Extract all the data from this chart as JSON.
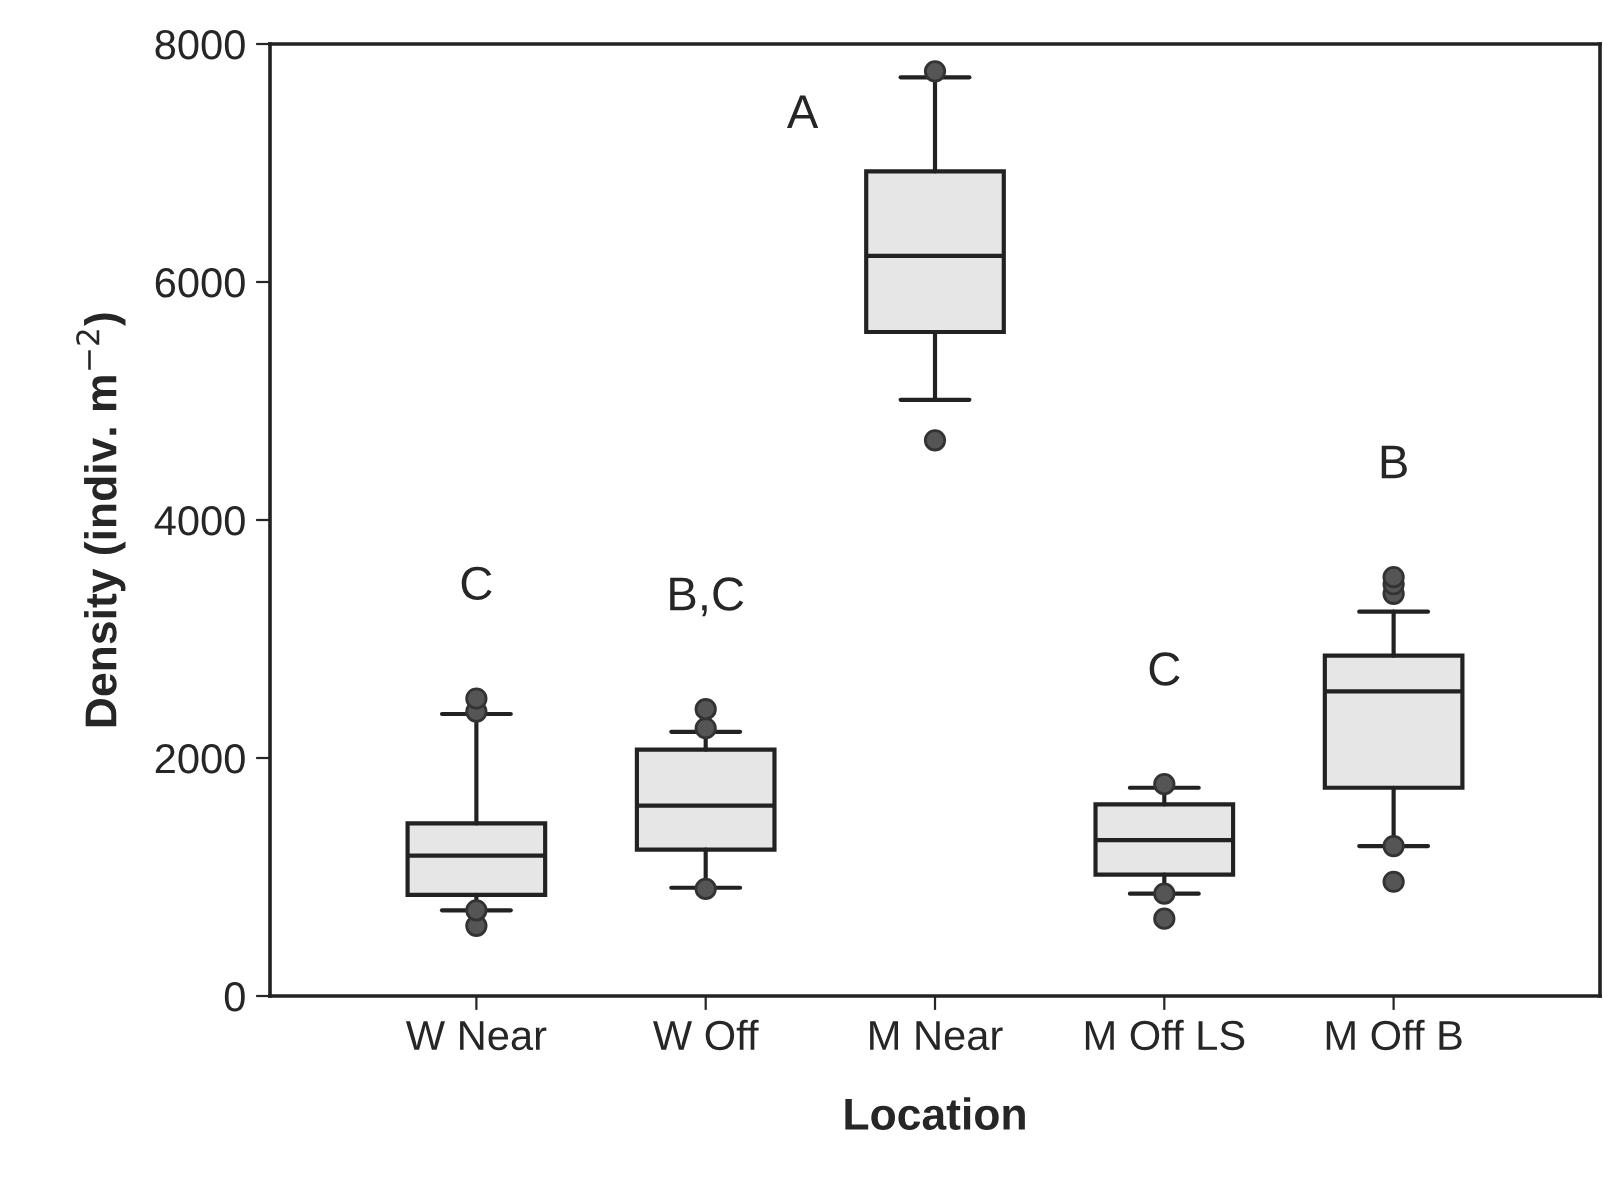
{
  "chart_data": {
    "type": "box",
    "xlabel": "Location",
    "ylabel": "Density (indiv. m$^{−2}$)",
    "categories": [
      "W Near",
      "W Off",
      "M Near",
      "M Off LS",
      "M Off B"
    ],
    "series": [
      {
        "color": "#e6e6e6",
        "boxes": [
          {
            "low": 720,
            "q1": 850,
            "median": 1180,
            "q3": 1450,
            "high": 2370,
            "outliers": [
              590,
              720,
              2390,
              2500
            ]
          },
          {
            "low": 910,
            "q1": 1230,
            "median": 1600,
            "q3": 2070,
            "high": 2220,
            "outliers": [
              900,
              2250,
              2410
            ]
          },
          {
            "low": 5010,
            "q1": 5580,
            "median": 6220,
            "q3": 6930,
            "high": 7720,
            "outliers": [
              4670,
              7770
            ]
          },
          {
            "low": 860,
            "q1": 1020,
            "median": 1310,
            "q3": 1610,
            "high": 1750,
            "outliers": [
              650,
              860,
              1780
            ]
          },
          {
            "low": 1260,
            "q1": 1750,
            "median": 2560,
            "q3": 2860,
            "high": 3230,
            "outliers": [
              960,
              1260,
              3380,
              3460,
              3520
            ]
          }
        ]
      }
    ],
    "ylim": [
      0,
      8000
    ],
    "yticks": [
      0,
      2000,
      4000,
      6000,
      8000
    ],
    "annotations": [
      "C",
      "B,C",
      "A",
      "C",
      "B"
    ]
  }
}
